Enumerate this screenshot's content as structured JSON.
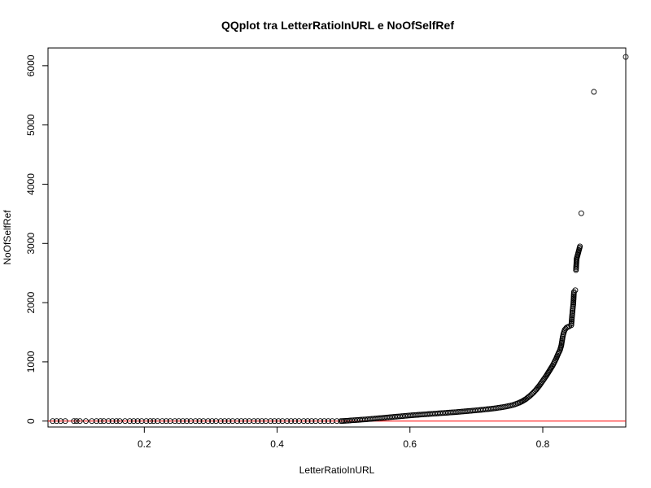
{
  "chart_data": {
    "type": "scatter",
    "title": "QQplot tra LetterRatioInURL e NoOfSelfRef",
    "xlabel": "LetterRatioInURL",
    "ylabel": "NoOfSelfRef",
    "xlim": [
      0.055,
      0.925
    ],
    "ylim": [
      -100,
      6300
    ],
    "x_ticks": [
      "0.2",
      "0.4",
      "0.6",
      "0.8"
    ],
    "y_ticks": [
      "0",
      "1000",
      "2000",
      "3000",
      "4000",
      "5000",
      "6000"
    ],
    "reference_line": {
      "y": 0,
      "color": "#ff0000"
    },
    "point_color": "#000000",
    "points": [
      [
        0.062,
        0
      ],
      [
        0.068,
        0
      ],
      [
        0.074,
        0
      ],
      [
        0.081,
        0
      ],
      [
        0.094,
        0
      ],
      [
        0.098,
        0
      ],
      [
        0.103,
        0
      ],
      [
        0.112,
        0
      ],
      [
        0.121,
        0
      ],
      [
        0.128,
        0
      ],
      [
        0.134,
        0
      ],
      [
        0.139,
        0
      ],
      [
        0.146,
        0
      ],
      [
        0.152,
        0
      ],
      [
        0.158,
        0
      ],
      [
        0.163,
        0
      ],
      [
        0.171,
        0
      ],
      [
        0.178,
        0
      ],
      [
        0.184,
        0
      ],
      [
        0.19,
        0
      ],
      [
        0.196,
        0
      ],
      [
        0.203,
        0
      ],
      [
        0.209,
        0
      ],
      [
        0.214,
        0
      ],
      [
        0.22,
        0
      ],
      [
        0.227,
        0
      ],
      [
        0.233,
        0
      ],
      [
        0.239,
        0
      ],
      [
        0.246,
        0
      ],
      [
        0.252,
        0
      ],
      [
        0.258,
        0
      ],
      [
        0.264,
        0
      ],
      [
        0.27,
        0
      ],
      [
        0.277,
        0
      ],
      [
        0.283,
        0
      ],
      [
        0.289,
        0
      ],
      [
        0.296,
        0
      ],
      [
        0.302,
        0
      ],
      [
        0.308,
        0
      ],
      [
        0.315,
        0
      ],
      [
        0.321,
        0
      ],
      [
        0.327,
        0
      ],
      [
        0.333,
        0
      ],
      [
        0.34,
        0
      ],
      [
        0.346,
        0
      ],
      [
        0.352,
        0
      ],
      [
        0.358,
        0
      ],
      [
        0.365,
        0
      ],
      [
        0.371,
        0
      ],
      [
        0.377,
        0
      ],
      [
        0.383,
        0
      ],
      [
        0.39,
        0
      ],
      [
        0.396,
        0
      ],
      [
        0.402,
        0
      ],
      [
        0.408,
        0
      ],
      [
        0.415,
        0
      ],
      [
        0.421,
        0
      ],
      [
        0.427,
        0
      ],
      [
        0.433,
        0
      ],
      [
        0.44,
        0
      ],
      [
        0.446,
        0
      ],
      [
        0.452,
        0
      ],
      [
        0.458,
        0
      ],
      [
        0.465,
        0
      ],
      [
        0.471,
        0
      ],
      [
        0.477,
        0
      ],
      [
        0.483,
        0
      ],
      [
        0.49,
        0
      ],
      [
        0.496,
        0
      ],
      [
        0.5,
        2
      ],
      [
        0.505,
        5
      ],
      [
        0.51,
        10
      ],
      [
        0.515,
        14
      ],
      [
        0.52,
        18
      ],
      [
        0.525,
        22
      ],
      [
        0.53,
        26
      ],
      [
        0.535,
        30
      ],
      [
        0.54,
        35
      ],
      [
        0.545,
        40
      ],
      [
        0.55,
        45
      ],
      [
        0.555,
        50
      ],
      [
        0.56,
        55
      ],
      [
        0.565,
        60
      ],
      [
        0.57,
        65
      ],
      [
        0.575,
        70
      ],
      [
        0.58,
        75
      ],
      [
        0.585,
        80
      ],
      [
        0.59,
        85
      ],
      [
        0.595,
        90
      ],
      [
        0.6,
        95
      ],
      [
        0.605,
        100
      ],
      [
        0.61,
        104
      ],
      [
        0.615,
        108
      ],
      [
        0.62,
        112
      ],
      [
        0.625,
        116
      ],
      [
        0.63,
        120
      ],
      [
        0.635,
        124
      ],
      [
        0.64,
        128
      ],
      [
        0.645,
        132
      ],
      [
        0.65,
        136
      ],
      [
        0.655,
        140
      ],
      [
        0.66,
        144
      ],
      [
        0.665,
        148
      ],
      [
        0.67,
        152
      ],
      [
        0.675,
        157
      ],
      [
        0.68,
        162
      ],
      [
        0.685,
        167
      ],
      [
        0.69,
        172
      ],
      [
        0.695,
        177
      ],
      [
        0.7,
        182
      ],
      [
        0.705,
        187
      ],
      [
        0.71,
        193
      ],
      [
        0.715,
        199
      ],
      [
        0.72,
        205
      ],
      [
        0.725,
        212
      ],
      [
        0.73,
        219
      ],
      [
        0.735,
        227
      ],
      [
        0.74,
        236
      ],
      [
        0.745,
        246
      ],
      [
        0.75,
        258
      ],
      [
        0.755,
        272
      ],
      [
        0.76,
        290
      ],
      [
        0.765,
        312
      ],
      [
        0.77,
        340
      ],
      [
        0.775,
        375
      ],
      [
        0.78,
        420
      ],
      [
        0.785,
        470
      ],
      [
        0.79,
        530
      ],
      [
        0.795,
        600
      ],
      [
        0.8,
        680
      ],
      [
        0.805,
        760
      ],
      [
        0.81,
        850
      ],
      [
        0.815,
        940
      ],
      [
        0.82,
        1050
      ],
      [
        0.823,
        1130
      ],
      [
        0.826,
        1200
      ],
      [
        0.828,
        1280
      ],
      [
        0.829,
        1350
      ],
      [
        0.83,
        1420
      ],
      [
        0.831,
        1470
      ],
      [
        0.833,
        1540
      ],
      [
        0.836,
        1580
      ],
      [
        0.84,
        1600
      ],
      [
        0.843,
        1620
      ],
      [
        0.844,
        1760
      ],
      [
        0.845,
        1880
      ],
      [
        0.846,
        1980
      ],
      [
        0.847,
        2180
      ],
      [
        0.849,
        2210
      ],
      [
        0.85,
        2550
      ],
      [
        0.851,
        2740
      ],
      [
        0.856,
        2950
      ],
      [
        0.858,
        3510
      ],
      [
        0.877,
        5560
      ],
      [
        0.925,
        6150
      ]
    ]
  }
}
